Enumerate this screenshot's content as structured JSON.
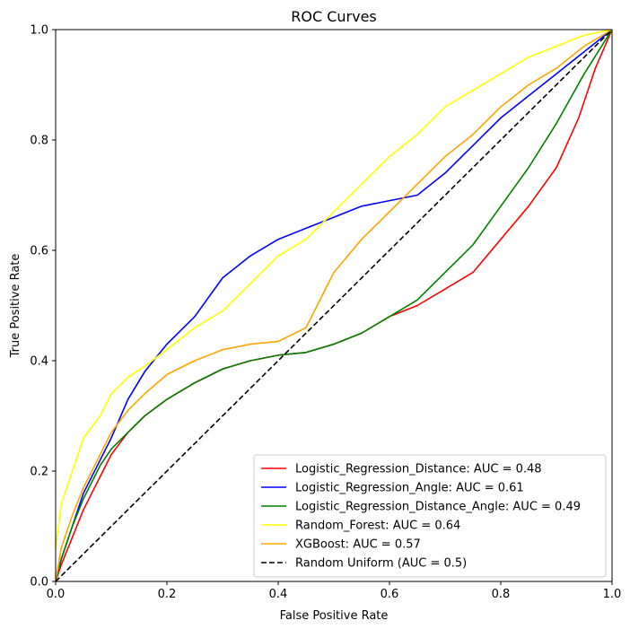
{
  "chart_data": {
    "type": "line",
    "title": "ROC Curves",
    "xlabel": "False Positive Rate",
    "ylabel": "True Positive Rate",
    "xlim": [
      0,
      1
    ],
    "ylim": [
      0,
      1
    ],
    "xticks": [
      "0.0",
      "0.2",
      "0.4",
      "0.6",
      "0.8",
      "1.0"
    ],
    "yticks": [
      "0.0",
      "0.2",
      "0.4",
      "0.6",
      "0.8",
      "1.0"
    ],
    "grid": false,
    "legend_position": "lower-right",
    "series": [
      {
        "name": "Logistic_Regression_Distance: AUC = 0.48",
        "color": "#ff0000",
        "dash": "solid",
        "x": [
          0.0,
          0.01,
          0.03,
          0.05,
          0.08,
          0.1,
          0.13,
          0.16,
          0.2,
          0.25,
          0.3,
          0.35,
          0.4,
          0.45,
          0.5,
          0.55,
          0.6,
          0.65,
          0.7,
          0.75,
          0.8,
          0.85,
          0.9,
          0.94,
          0.97,
          1.0
        ],
        "y": [
          0.0,
          0.03,
          0.08,
          0.13,
          0.19,
          0.23,
          0.27,
          0.3,
          0.33,
          0.36,
          0.385,
          0.4,
          0.41,
          0.415,
          0.43,
          0.45,
          0.48,
          0.5,
          0.53,
          0.56,
          0.62,
          0.68,
          0.75,
          0.84,
          0.93,
          1.0
        ]
      },
      {
        "name": "Logistic_Regression_Angle: AUC = 0.61",
        "color": "#0000ff",
        "dash": "solid",
        "x": [
          0.0,
          0.01,
          0.03,
          0.05,
          0.08,
          0.1,
          0.13,
          0.16,
          0.2,
          0.25,
          0.3,
          0.35,
          0.4,
          0.45,
          0.5,
          0.55,
          0.6,
          0.65,
          0.7,
          0.75,
          0.8,
          0.85,
          0.9,
          0.95,
          1.0
        ],
        "y": [
          0.0,
          0.04,
          0.1,
          0.16,
          0.22,
          0.26,
          0.33,
          0.38,
          0.43,
          0.48,
          0.55,
          0.59,
          0.62,
          0.64,
          0.66,
          0.68,
          0.69,
          0.7,
          0.74,
          0.79,
          0.84,
          0.88,
          0.92,
          0.96,
          1.0
        ]
      },
      {
        "name": "Logistic_Regression_Distance_Angle: AUC = 0.49",
        "color": "#008000",
        "dash": "solid",
        "x": [
          0.0,
          0.01,
          0.03,
          0.05,
          0.08,
          0.1,
          0.13,
          0.16,
          0.2,
          0.25,
          0.3,
          0.35,
          0.4,
          0.45,
          0.5,
          0.55,
          0.6,
          0.65,
          0.7,
          0.75,
          0.8,
          0.85,
          0.9,
          0.95,
          1.0
        ],
        "y": [
          0.0,
          0.04,
          0.1,
          0.15,
          0.21,
          0.24,
          0.27,
          0.3,
          0.33,
          0.36,
          0.385,
          0.4,
          0.41,
          0.415,
          0.43,
          0.45,
          0.48,
          0.51,
          0.56,
          0.61,
          0.68,
          0.75,
          0.83,
          0.92,
          1.0
        ]
      },
      {
        "name": "Random_Forest: AUC = 0.64",
        "color": "#ffff00",
        "dash": "solid",
        "x": [
          0.0,
          0.01,
          0.03,
          0.05,
          0.08,
          0.1,
          0.13,
          0.16,
          0.2,
          0.25,
          0.3,
          0.35,
          0.4,
          0.45,
          0.5,
          0.55,
          0.6,
          0.65,
          0.7,
          0.75,
          0.8,
          0.85,
          0.9,
          0.95,
          1.0
        ],
        "y": [
          0.06,
          0.14,
          0.2,
          0.26,
          0.3,
          0.34,
          0.37,
          0.39,
          0.42,
          0.46,
          0.49,
          0.54,
          0.59,
          0.62,
          0.67,
          0.72,
          0.77,
          0.81,
          0.86,
          0.89,
          0.92,
          0.95,
          0.97,
          0.99,
          1.0
        ]
      },
      {
        "name": "XGBoost: AUC = 0.57",
        "color": "#ffa500",
        "dash": "solid",
        "x": [
          0.0,
          0.01,
          0.03,
          0.05,
          0.08,
          0.1,
          0.13,
          0.16,
          0.2,
          0.25,
          0.3,
          0.35,
          0.4,
          0.45,
          0.5,
          0.55,
          0.6,
          0.65,
          0.7,
          0.75,
          0.8,
          0.85,
          0.9,
          0.95,
          1.0
        ],
        "y": [
          0.0,
          0.06,
          0.12,
          0.17,
          0.23,
          0.27,
          0.31,
          0.34,
          0.375,
          0.4,
          0.42,
          0.43,
          0.435,
          0.46,
          0.56,
          0.62,
          0.67,
          0.72,
          0.77,
          0.81,
          0.86,
          0.9,
          0.93,
          0.97,
          1.0
        ]
      },
      {
        "name": "Random Uniform (AUC = 0.5)",
        "color": "#000000",
        "dash": "dashed",
        "x": [
          0.0,
          1.0
        ],
        "y": [
          0.0,
          1.0
        ]
      }
    ]
  }
}
